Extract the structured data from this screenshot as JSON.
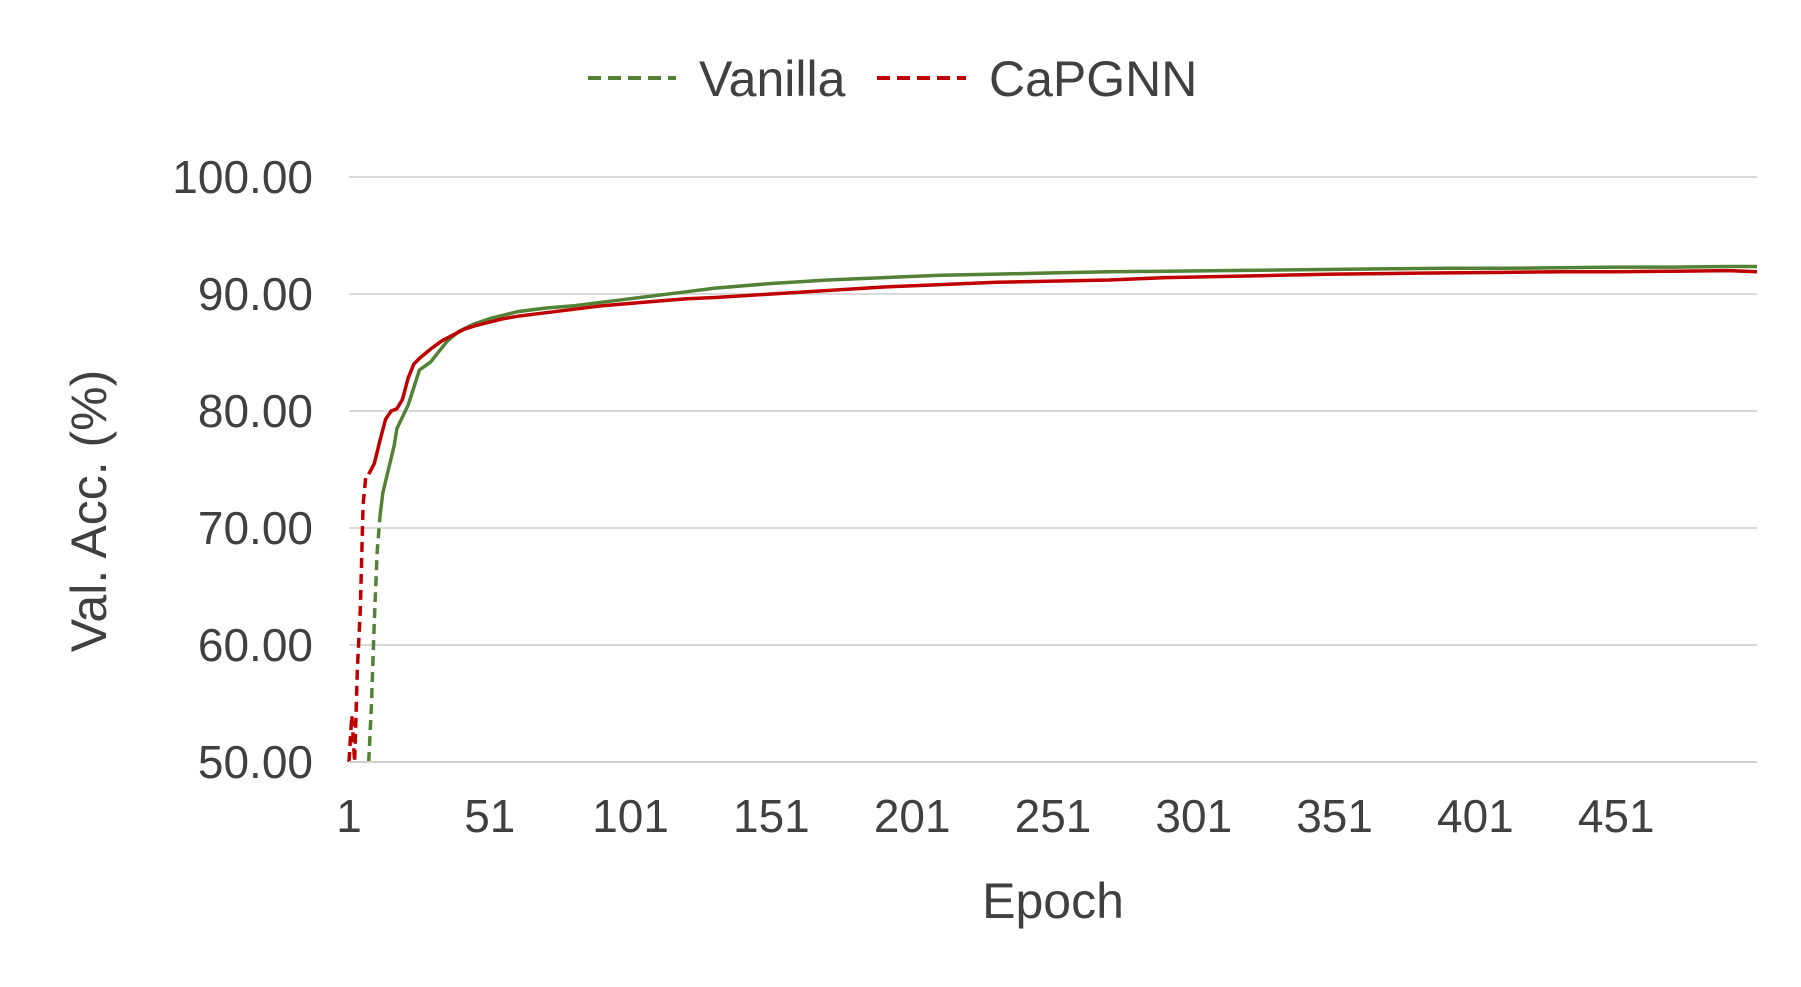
{
  "chart_data": {
    "type": "line",
    "xlabel": "Epoch",
    "ylabel": "Val. Acc. (%)",
    "xlim": [
      1,
      501
    ],
    "ylim": [
      50,
      100
    ],
    "x_ticks": [
      1,
      51,
      101,
      151,
      201,
      251,
      301,
      351,
      401,
      451
    ],
    "x_tick_labels": [
      "1",
      "51",
      "101",
      "151",
      "201",
      "251",
      "301",
      "351",
      "401",
      "451"
    ],
    "y_ticks": [
      50,
      60,
      70,
      80,
      90,
      100
    ],
    "y_tick_labels": [
      "50.00",
      "60.00",
      "70.00",
      "80.00",
      "90.00",
      "100.00"
    ],
    "grid": "horizontal",
    "legend_position": "top-center",
    "series": [
      {
        "name": "Vanilla",
        "color": "#538135",
        "x": [
          1,
          6,
          8,
          9,
          10,
          11,
          12,
          13,
          15,
          17,
          18,
          20,
          22,
          24,
          26,
          30,
          32,
          34,
          36,
          40,
          45,
          51,
          56,
          61,
          71,
          81,
          91,
          101,
          111,
          121,
          131,
          151,
          171,
          191,
          211,
          231,
          251,
          271,
          291,
          311,
          331,
          351,
          371,
          391,
          411,
          431,
          451,
          471,
          491,
          501
        ],
        "values": [
          null,
          null,
          50,
          55,
          62,
          68,
          71,
          73,
          75,
          77,
          78.5,
          79.5,
          80.5,
          82,
          83.5,
          84.2,
          84.8,
          85.4,
          86.0,
          86.8,
          87.4,
          87.9,
          88.2,
          88.5,
          88.8,
          89.0,
          89.3,
          89.6,
          89.9,
          90.2,
          90.5,
          90.9,
          91.2,
          91.4,
          91.6,
          91.7,
          91.8,
          91.9,
          91.95,
          92.0,
          92.05,
          92.1,
          92.15,
          92.2,
          92.2,
          92.25,
          92.3,
          92.3,
          92.35,
          92.35
        ]
      },
      {
        "name": "CaPGNN",
        "color": "#c00000",
        "x": [
          1,
          2,
          3,
          4,
          5,
          6,
          7,
          8,
          10,
          12,
          14,
          16,
          18,
          20,
          22,
          24,
          26,
          30,
          34,
          38,
          42,
          46,
          51,
          56,
          61,
          71,
          81,
          91,
          101,
          111,
          121,
          131,
          151,
          171,
          191,
          211,
          231,
          251,
          271,
          291,
          311,
          331,
          351,
          371,
          391,
          411,
          431,
          451,
          471,
          491,
          501
        ],
        "values": [
          50,
          54,
          50,
          58,
          63,
          72,
          74.5,
          74.6,
          75.5,
          77.5,
          79.3,
          80.0,
          80.2,
          81.0,
          82.8,
          84.0,
          84.5,
          85.3,
          86.0,
          86.5,
          87.0,
          87.3,
          87.6,
          87.9,
          88.1,
          88.4,
          88.7,
          89.0,
          89.2,
          89.4,
          89.6,
          89.7,
          90.0,
          90.3,
          90.6,
          90.8,
          91.0,
          91.1,
          91.2,
          91.4,
          91.5,
          91.6,
          91.7,
          91.75,
          91.8,
          91.85,
          91.9,
          91.9,
          91.95,
          92.0,
          91.9
        ]
      }
    ]
  }
}
